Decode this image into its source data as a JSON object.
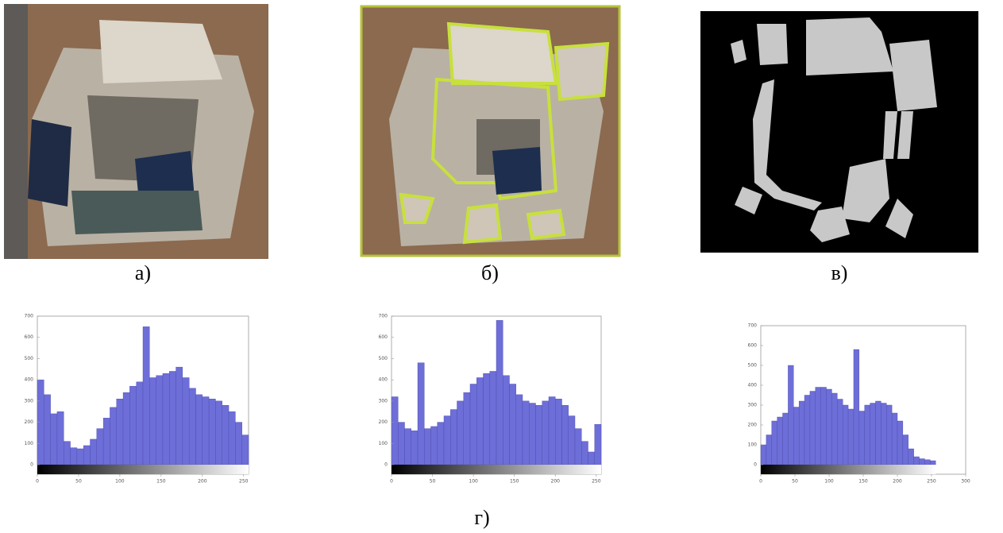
{
  "panels": {
    "a": "а)",
    "b": "б)",
    "c": "в)"
  },
  "caption": "г)",
  "chart_data": [
    {
      "type": "histogram",
      "color": "#6e6ed8",
      "bins": [
        0,
        8,
        16,
        24,
        32,
        40,
        48,
        56,
        64,
        72,
        80,
        88,
        96,
        104,
        112,
        120,
        128,
        136,
        144,
        152,
        160,
        168,
        176,
        184,
        192,
        200,
        208,
        216,
        224,
        232,
        240,
        248,
        256
      ],
      "values": [
        400,
        330,
        240,
        250,
        110,
        80,
        75,
        90,
        120,
        170,
        220,
        270,
        310,
        340,
        370,
        390,
        650,
        410,
        420,
        430,
        440,
        460,
        410,
        360,
        330,
        320,
        310,
        300,
        280,
        250,
        200,
        140
      ],
      "xlim": [
        0,
        256
      ],
      "ylim": [
        0,
        700
      ],
      "xticks": [
        0,
        50,
        100,
        150,
        200,
        250
      ],
      "yticks": [
        0,
        100,
        200,
        300,
        400,
        500,
        600,
        700
      ]
    },
    {
      "type": "histogram",
      "color": "#6e6ed8",
      "bins": [
        0,
        8,
        16,
        24,
        32,
        40,
        48,
        56,
        64,
        72,
        80,
        88,
        96,
        104,
        112,
        120,
        128,
        136,
        144,
        152,
        160,
        168,
        176,
        184,
        192,
        200,
        208,
        216,
        224,
        232,
        240,
        248,
        256
      ],
      "values": [
        320,
        200,
        170,
        160,
        480,
        170,
        180,
        200,
        230,
        260,
        300,
        340,
        380,
        410,
        430,
        440,
        680,
        420,
        380,
        330,
        300,
        290,
        280,
        300,
        320,
        310,
        280,
        230,
        170,
        110,
        60,
        190
      ],
      "xlim": [
        0,
        256
      ],
      "ylim": [
        0,
        700
      ],
      "xticks": [
        0,
        50,
        100,
        150,
        200,
        250
      ],
      "yticks": [
        0,
        100,
        200,
        300,
        400,
        500,
        600,
        700
      ]
    },
    {
      "type": "histogram",
      "color": "#6e6ed8",
      "bins": [
        0,
        8,
        16,
        24,
        32,
        40,
        48,
        56,
        64,
        72,
        80,
        88,
        96,
        104,
        112,
        120,
        128,
        136,
        144,
        152,
        160,
        168,
        176,
        184,
        192,
        200,
        208,
        216,
        224,
        232,
        240,
        248,
        256
      ],
      "values": [
        100,
        150,
        220,
        240,
        260,
        500,
        290,
        320,
        350,
        370,
        390,
        390,
        380,
        360,
        330,
        300,
        280,
        580,
        270,
        300,
        310,
        320,
        310,
        300,
        260,
        220,
        150,
        80,
        40,
        30,
        25,
        20
      ],
      "xlim": [
        0,
        300
      ],
      "ylim": [
        0,
        700
      ],
      "xticks": [
        0,
        50,
        100,
        150,
        200,
        250,
        300
      ],
      "yticks": [
        0,
        100,
        200,
        300,
        400,
        500,
        600,
        700
      ]
    }
  ]
}
